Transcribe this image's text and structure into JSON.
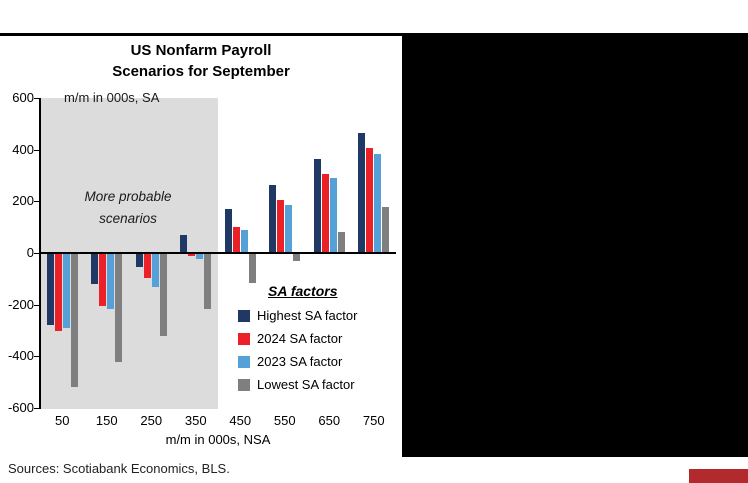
{
  "page": {
    "sources": "Sources: Scotiabank Economics, BLS."
  },
  "chart": {
    "title_line1": "US Nonfarm Payroll",
    "title_line2": "Scenarios for September",
    "y_axis_note": "m/m in 000s, SA",
    "x_axis_label": "m/m in 000s, NSA",
    "shaded_label_line1": "More probable",
    "shaded_label_line2": "scenarios",
    "legend_title": "SA factors"
  },
  "chart_data": {
    "type": "bar",
    "title": "US Nonfarm Payroll Scenarios for September",
    "ylabel": "m/m in 000s, SA",
    "xlabel": "m/m in 000s, NSA",
    "ylim": [
      -600,
      600
    ],
    "y_ticks": [
      600,
      400,
      200,
      0,
      -200,
      -400,
      -600
    ],
    "categories": [
      50,
      150,
      250,
      350,
      450,
      550,
      650,
      750
    ],
    "series": [
      {
        "name": "Highest SA factor",
        "color": "#1f3864",
        "values": [
          -280,
          -120,
          -55,
          70,
          170,
          265,
          365,
          465
        ]
      },
      {
        "name": "2024 SA factor",
        "color": "#ec2127",
        "values": [
          -300,
          -205,
          -95,
          -10,
          100,
          205,
          305,
          405
        ]
      },
      {
        "name": "2023 SA factor",
        "color": "#55a0d6",
        "values": [
          -290,
          -215,
          -130,
          -25,
          90,
          185,
          290,
          385
        ]
      },
      {
        "name": "Lowest SA factor",
        "color": "#7f7f7f",
        "values": [
          -520,
          -420,
          -320,
          -215,
          -115,
          -30,
          80,
          180
        ]
      }
    ],
    "shaded_region": {
      "label": "More probable scenarios",
      "covers_categories": [
        50,
        150,
        250,
        350
      ],
      "color": "#dcdcdc"
    },
    "legend_position": "lower right",
    "grid": false
  }
}
